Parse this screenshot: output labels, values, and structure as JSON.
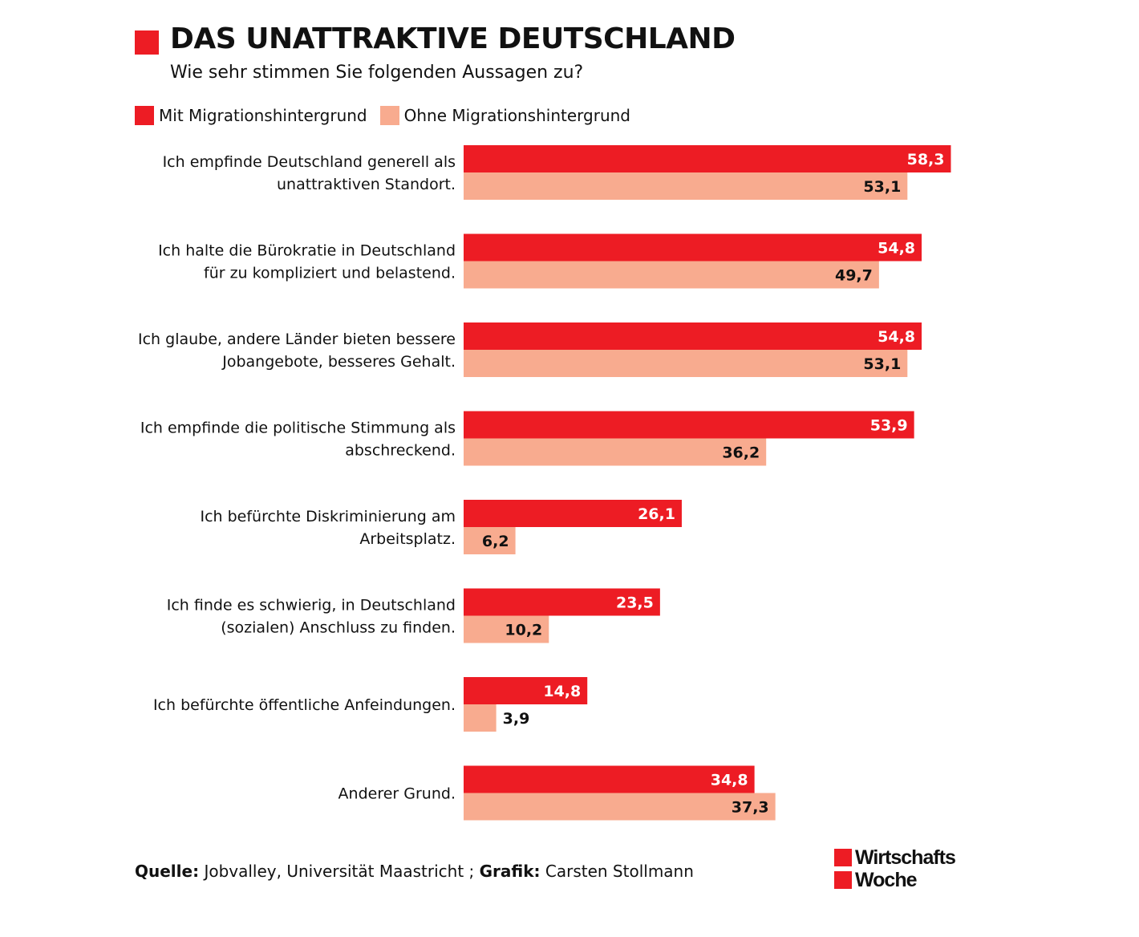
{
  "title": "DAS UNATTRAKTIVE DEUTSCHLAND",
  "subtitle": "Wie sehr stimmen Sie folgenden Aussagen zu?",
  "colors": {
    "accent": "#ed1c24",
    "secondary": "#f8ab8f",
    "text": "#111111"
  },
  "legend": [
    {
      "label": "Mit Migrationshintergrund",
      "color": "#ed1c24"
    },
    {
      "label": "Ohne Migrationshintergrund",
      "color": "#f8ab8f"
    }
  ],
  "footer": {
    "source_label": "Quelle:",
    "source_text": "Jobvalley, Universität Maastricht ;",
    "graphic_label": "Grafik:",
    "graphic_text": "Carsten Stollmann"
  },
  "logo": {
    "line1": "Wirtschafts",
    "line2": "Woche"
  },
  "chart_data": {
    "type": "bar",
    "orientation": "horizontal",
    "title": "DAS UNATTRAKTIVE DEUTSCHLAND",
    "subtitle": "Wie sehr stimmen Sie folgenden Aussagen zu?",
    "xlim": [
      0,
      60
    ],
    "grid": false,
    "legend_position": "top-left",
    "categories": [
      [
        "Ich empfinde Deutschland generell als",
        "unattraktiven Standort."
      ],
      [
        "Ich halte die Bürokratie in Deutschland",
        "für zu kompliziert und belastend."
      ],
      [
        "Ich glaube, andere Länder bieten bessere",
        "Jobangebote, besseres Gehalt."
      ],
      [
        "Ich empfinde die politische Stimmung als",
        "abschreckend."
      ],
      [
        "Ich befürchte Diskriminierung am",
        "Arbeitsplatz."
      ],
      [
        "Ich finde es schwierig, in Deutschland",
        "(sozialen) Anschluss zu finden."
      ],
      [
        "Ich befürchte öffentliche Anfeindungen."
      ],
      [
        "Anderer Grund."
      ]
    ],
    "series": [
      {
        "name": "Mit Migrationshintergrund",
        "color": "#ed1c24",
        "values": [
          58.3,
          54.8,
          54.8,
          53.9,
          26.1,
          23.5,
          14.8,
          34.8
        ],
        "labels": [
          "58,3",
          "54,8",
          "54,8",
          "53,9",
          "26,1",
          "23,5",
          "14,8",
          "34,8"
        ]
      },
      {
        "name": "Ohne Migrationshintergrund",
        "color": "#f8ab8f",
        "values": [
          53.1,
          49.7,
          53.1,
          36.2,
          6.2,
          10.2,
          3.9,
          37.3
        ],
        "labels": [
          "53,1",
          "49,7",
          "53,1",
          "36,2",
          "6,2",
          "10,2",
          "3,9",
          "37,3"
        ]
      }
    ]
  }
}
